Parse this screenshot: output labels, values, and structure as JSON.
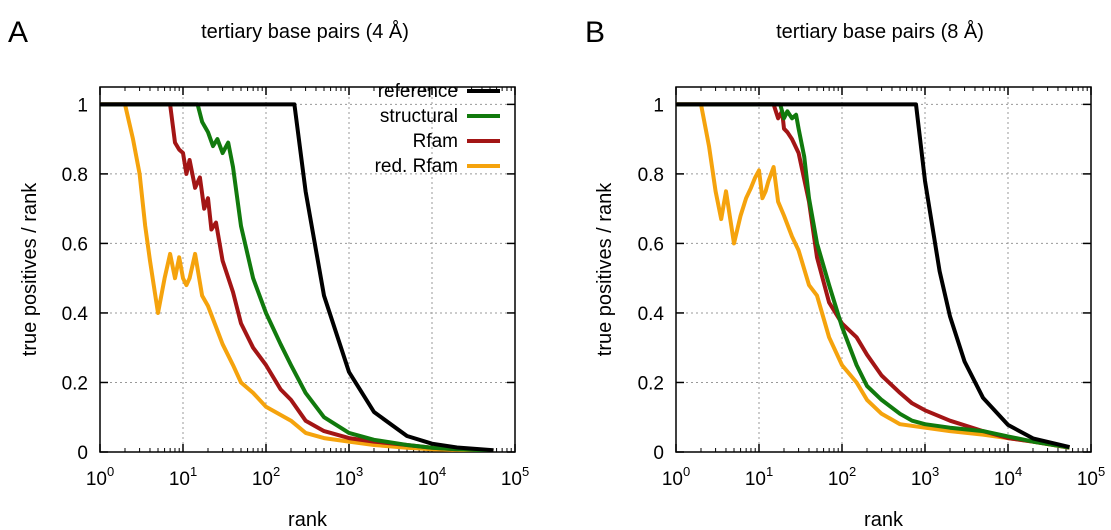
{
  "chart_data": [
    {
      "type": "line",
      "panel_letter": "A",
      "title": "tertiary base pairs (4 Å)",
      "xlabel": "rank",
      "ylabel": "true positives / rank",
      "xscale": "log",
      "xlim": [
        1,
        100000
      ],
      "ylim": [
        0,
        1.05
      ],
      "x_ticks": [
        {
          "base": "10",
          "exp": "0"
        },
        {
          "base": "10",
          "exp": "1"
        },
        {
          "base": "10",
          "exp": "2"
        },
        {
          "base": "10",
          "exp": "3"
        },
        {
          "base": "10",
          "exp": "4"
        },
        {
          "base": "10",
          "exp": "5"
        }
      ],
      "y_ticks": [
        "0",
        "0.2",
        "0.4",
        "0.6",
        "0.8",
        "1"
      ],
      "grid": true,
      "legend_position": "top-right",
      "series": [
        {
          "name": "reference",
          "color": "#000000",
          "x": [
            1,
            10,
            100,
            220,
            300,
            500,
            1000,
            2000,
            5000,
            10000,
            20000,
            55000
          ],
          "y": [
            1,
            1,
            1,
            1,
            0.75,
            0.45,
            0.23,
            0.115,
            0.046,
            0.024,
            0.013,
            0.005
          ]
        },
        {
          "name": "structural",
          "color": "#117a0d",
          "x": [
            1,
            10,
            15,
            17,
            20,
            23,
            26,
            30,
            35,
            40,
            50,
            70,
            100,
            150,
            200,
            300,
            500,
            1000,
            2000,
            5000,
            10000,
            20000,
            55000
          ],
          "y": [
            1,
            1,
            1,
            0.95,
            0.92,
            0.88,
            0.9,
            0.86,
            0.89,
            0.82,
            0.65,
            0.5,
            0.4,
            0.31,
            0.25,
            0.17,
            0.1,
            0.055,
            0.035,
            0.02,
            0.012,
            0.008,
            0.004
          ]
        },
        {
          "name": "Rfam",
          "color": "#a31515",
          "x": [
            1,
            5,
            7,
            8,
            9,
            10,
            11,
            12,
            14,
            16,
            18,
            20,
            22,
            25,
            30,
            40,
            50,
            70,
            100,
            150,
            200,
            300,
            500,
            1000,
            2000,
            5000,
            10000,
            20000,
            55000
          ],
          "y": [
            1,
            1,
            1,
            0.89,
            0.87,
            0.86,
            0.8,
            0.84,
            0.76,
            0.79,
            0.7,
            0.73,
            0.64,
            0.66,
            0.55,
            0.46,
            0.37,
            0.3,
            0.25,
            0.18,
            0.15,
            0.09,
            0.06,
            0.04,
            0.03,
            0.02,
            0.012,
            0.008,
            0.004
          ]
        },
        {
          "name": "red. Rfam",
          "color": "#f5a30d",
          "x": [
            1,
            2,
            2.5,
            3,
            3.5,
            4,
            5,
            6,
            7,
            8,
            9,
            10,
            11,
            12,
            14,
            17,
            20,
            25,
            30,
            40,
            50,
            70,
            100,
            200,
            300,
            500,
            1000,
            2000,
            5000,
            10000,
            20000,
            55000
          ],
          "y": [
            1,
            1,
            0.9,
            0.8,
            0.65,
            0.55,
            0.4,
            0.5,
            0.57,
            0.5,
            0.56,
            0.5,
            0.48,
            0.5,
            0.57,
            0.45,
            0.42,
            0.36,
            0.31,
            0.25,
            0.2,
            0.17,
            0.13,
            0.09,
            0.055,
            0.04,
            0.03,
            0.02,
            0.012,
            0.008,
            0.006,
            0.003
          ]
        }
      ]
    },
    {
      "type": "line",
      "panel_letter": "B",
      "title": "tertiary base pairs (8 Å)",
      "xlabel": "rank",
      "ylabel": "true positives / rank",
      "xscale": "log",
      "xlim": [
        1,
        100000
      ],
      "ylim": [
        0,
        1.05
      ],
      "x_ticks": [
        {
          "base": "10",
          "exp": "0"
        },
        {
          "base": "10",
          "exp": "1"
        },
        {
          "base": "10",
          "exp": "2"
        },
        {
          "base": "10",
          "exp": "3"
        },
        {
          "base": "10",
          "exp": "4"
        },
        {
          "base": "10",
          "exp": "5"
        }
      ],
      "y_ticks": [
        "0",
        "0.2",
        "0.4",
        "0.6",
        "0.8",
        "1"
      ],
      "grid": true,
      "series": [
        {
          "name": "reference",
          "color": "#000000",
          "x": [
            1,
            10,
            100,
            500,
            780,
            1000,
            1500,
            2000,
            3000,
            5000,
            10000,
            20000,
            55000
          ],
          "y": [
            1,
            1,
            1,
            1,
            1,
            0.78,
            0.52,
            0.39,
            0.26,
            0.156,
            0.078,
            0.039,
            0.014
          ]
        },
        {
          "name": "structural",
          "color": "#117a0d",
          "x": [
            1,
            10,
            18,
            20,
            22,
            25,
            28,
            30,
            35,
            40,
            50,
            70,
            100,
            150,
            200,
            300,
            500,
            700,
            1000,
            2000,
            5000,
            10000,
            20000,
            55000
          ],
          "y": [
            1,
            1,
            1,
            0.96,
            0.98,
            0.96,
            0.97,
            0.93,
            0.85,
            0.73,
            0.6,
            0.48,
            0.36,
            0.25,
            0.19,
            0.15,
            0.11,
            0.09,
            0.08,
            0.07,
            0.06,
            0.045,
            0.03,
            0.013
          ]
        },
        {
          "name": "Rfam",
          "color": "#a31515",
          "x": [
            1,
            10,
            15,
            17,
            19,
            20,
            22,
            25,
            30,
            40,
            50,
            70,
            100,
            150,
            200,
            300,
            500,
            700,
            1000,
            2000,
            5000,
            10000,
            20000,
            55000
          ],
          "y": [
            1,
            1,
            1,
            0.96,
            0.98,
            0.93,
            0.92,
            0.9,
            0.86,
            0.72,
            0.56,
            0.43,
            0.37,
            0.33,
            0.28,
            0.22,
            0.17,
            0.14,
            0.12,
            0.09,
            0.06,
            0.04,
            0.03,
            0.013
          ]
        },
        {
          "name": "red. Rfam",
          "color": "#f5a30d",
          "x": [
            1,
            2,
            2.5,
            3,
            3.5,
            4,
            5,
            6,
            7,
            8,
            9,
            10,
            11,
            12,
            13,
            14,
            15,
            17,
            20,
            25,
            30,
            40,
            50,
            70,
            100,
            150,
            200,
            300,
            500,
            1000,
            2000,
            5000,
            10000,
            20000,
            55000
          ],
          "y": [
            1,
            1,
            0.88,
            0.75,
            0.67,
            0.75,
            0.6,
            0.68,
            0.73,
            0.76,
            0.79,
            0.81,
            0.73,
            0.75,
            0.78,
            0.8,
            0.82,
            0.72,
            0.68,
            0.62,
            0.58,
            0.48,
            0.45,
            0.33,
            0.25,
            0.2,
            0.15,
            0.11,
            0.08,
            0.07,
            0.06,
            0.05,
            0.04,
            0.03,
            0.012
          ]
        }
      ]
    }
  ]
}
